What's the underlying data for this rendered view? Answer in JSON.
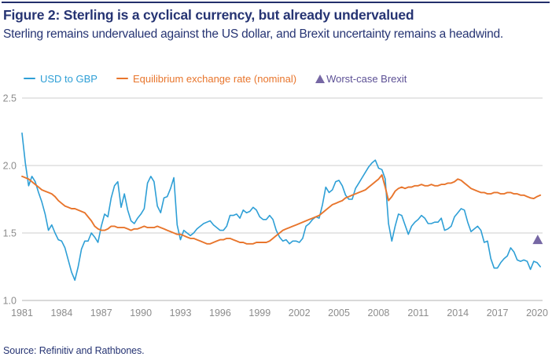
{
  "header": {
    "title": "Figure 2: Sterling is a cyclical currency, but already undervalued",
    "subtitle": "Sterling remains undervalued against the US dollar, and Brexit uncertainty remains a headwind."
  },
  "footer": {
    "source": "Source: Refinitiv and Rathbones."
  },
  "colors": {
    "navy": "#263473",
    "usd_gbp_blue": "#2e9fd6",
    "equilibrium_orange": "#e8752c",
    "brexit_purple": "#7667a4",
    "tick_gray": "#8c8c8c",
    "gridline_gray": "#cccccc",
    "axis_gray": "#b3b3b3"
  },
  "chart_data": {
    "type": "line",
    "title": "Figure 2: Sterling is a cyclical currency, but already undervalued",
    "xlabel": "",
    "ylabel": "",
    "x_start": 1981,
    "x_step": 0.25,
    "xlim": [
      1981,
      2020.6
    ],
    "ylim": [
      1.0,
      2.5
    ],
    "grid": "horizontal",
    "legend_position": "top",
    "yticks": [
      1.0,
      1.5,
      2.0,
      2.5
    ],
    "xticks": [
      1981,
      1984,
      1987,
      1990,
      1993,
      1996,
      1999,
      2002,
      2005,
      2008,
      2011,
      2014,
      2017,
      2020
    ],
    "series": [
      {
        "name": "USD to GBP",
        "color": "#2e9fd6",
        "values": [
          2.24,
          2.02,
          1.85,
          1.92,
          1.88,
          1.8,
          1.73,
          1.64,
          1.52,
          1.56,
          1.5,
          1.45,
          1.44,
          1.39,
          1.3,
          1.21,
          1.15,
          1.25,
          1.38,
          1.44,
          1.44,
          1.5,
          1.47,
          1.43,
          1.55,
          1.64,
          1.62,
          1.76,
          1.85,
          1.88,
          1.69,
          1.79,
          1.67,
          1.59,
          1.57,
          1.61,
          1.64,
          1.68,
          1.87,
          1.92,
          1.88,
          1.7,
          1.65,
          1.76,
          1.77,
          1.83,
          1.91,
          1.56,
          1.45,
          1.52,
          1.5,
          1.48,
          1.5,
          1.53,
          1.55,
          1.57,
          1.58,
          1.59,
          1.56,
          1.54,
          1.52,
          1.52,
          1.55,
          1.63,
          1.63,
          1.64,
          1.61,
          1.67,
          1.65,
          1.66,
          1.69,
          1.67,
          1.62,
          1.6,
          1.6,
          1.63,
          1.6,
          1.52,
          1.47,
          1.44,
          1.45,
          1.42,
          1.44,
          1.44,
          1.43,
          1.46,
          1.55,
          1.57,
          1.6,
          1.62,
          1.61,
          1.71,
          1.84,
          1.8,
          1.82,
          1.88,
          1.89,
          1.85,
          1.78,
          1.75,
          1.75,
          1.83,
          1.87,
          1.91,
          1.95,
          1.99,
          2.02,
          2.04,
          1.98,
          1.97,
          1.9,
          1.57,
          1.44,
          1.55,
          1.64,
          1.63,
          1.56,
          1.49,
          1.55,
          1.58,
          1.6,
          1.63,
          1.61,
          1.57,
          1.57,
          1.58,
          1.58,
          1.61,
          1.52,
          1.53,
          1.55,
          1.62,
          1.65,
          1.68,
          1.67,
          1.58,
          1.51,
          1.53,
          1.55,
          1.52,
          1.43,
          1.44,
          1.31,
          1.24,
          1.24,
          1.28,
          1.31,
          1.33,
          1.39,
          1.36,
          1.3,
          1.29,
          1.3,
          1.29,
          1.23,
          1.29,
          1.28,
          1.25
        ]
      },
      {
        "name": "Equilibrium exchange rate (nominal)",
        "color": "#e8752c",
        "values": [
          1.92,
          1.91,
          1.9,
          1.88,
          1.86,
          1.84,
          1.82,
          1.81,
          1.8,
          1.79,
          1.77,
          1.74,
          1.72,
          1.7,
          1.69,
          1.68,
          1.68,
          1.67,
          1.66,
          1.65,
          1.62,
          1.59,
          1.55,
          1.53,
          1.52,
          1.52,
          1.53,
          1.55,
          1.55,
          1.54,
          1.54,
          1.54,
          1.53,
          1.52,
          1.53,
          1.53,
          1.54,
          1.55,
          1.54,
          1.54,
          1.54,
          1.55,
          1.54,
          1.53,
          1.52,
          1.51,
          1.5,
          1.49,
          1.49,
          1.48,
          1.47,
          1.46,
          1.46,
          1.45,
          1.44,
          1.43,
          1.42,
          1.42,
          1.43,
          1.44,
          1.45,
          1.45,
          1.46,
          1.46,
          1.45,
          1.44,
          1.43,
          1.43,
          1.42,
          1.42,
          1.42,
          1.43,
          1.43,
          1.43,
          1.43,
          1.44,
          1.46,
          1.48,
          1.5,
          1.52,
          1.53,
          1.54,
          1.55,
          1.56,
          1.57,
          1.58,
          1.59,
          1.6,
          1.61,
          1.62,
          1.63,
          1.65,
          1.67,
          1.69,
          1.71,
          1.72,
          1.73,
          1.74,
          1.76,
          1.77,
          1.78,
          1.79,
          1.8,
          1.81,
          1.82,
          1.84,
          1.86,
          1.88,
          1.9,
          1.93,
          1.84,
          1.74,
          1.77,
          1.81,
          1.83,
          1.84,
          1.83,
          1.84,
          1.84,
          1.85,
          1.85,
          1.86,
          1.85,
          1.85,
          1.86,
          1.85,
          1.85,
          1.86,
          1.86,
          1.87,
          1.87,
          1.88,
          1.9,
          1.89,
          1.87,
          1.85,
          1.83,
          1.82,
          1.81,
          1.8,
          1.8,
          1.79,
          1.79,
          1.8,
          1.8,
          1.79,
          1.79,
          1.8,
          1.8,
          1.79,
          1.79,
          1.78,
          1.78,
          1.77,
          1.76,
          1.755,
          1.77,
          1.78
        ]
      }
    ],
    "marker": {
      "name": "Worst-case Brexit",
      "shape": "triangle-up",
      "color": "#7667a4",
      "x": 2020.05,
      "y": 1.45
    }
  }
}
